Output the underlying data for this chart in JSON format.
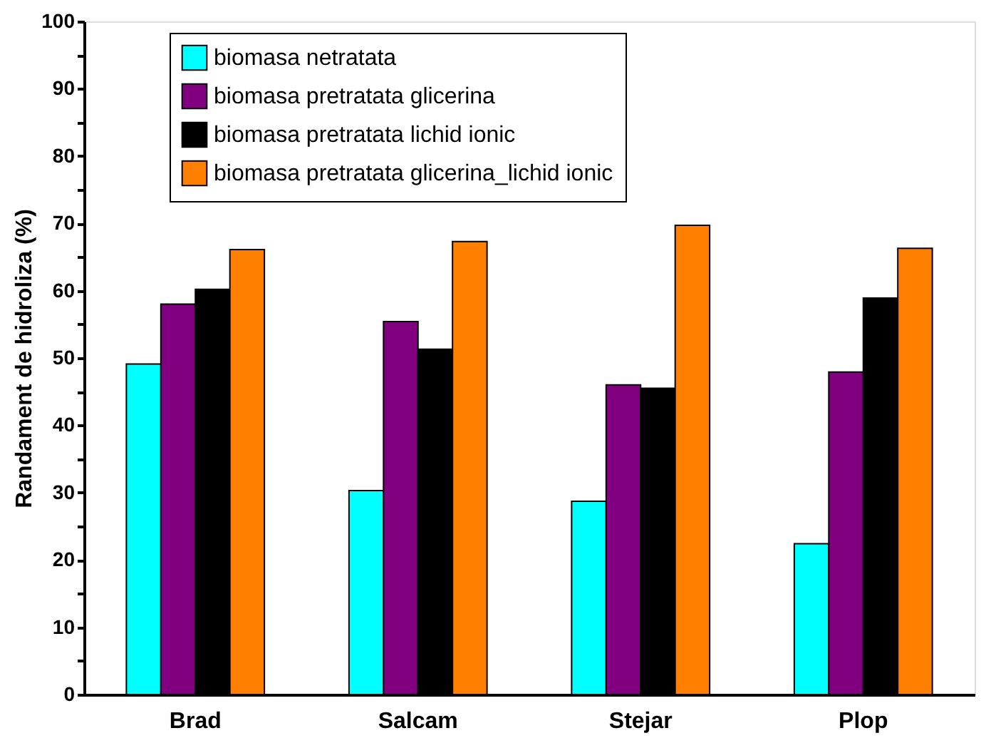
{
  "chart_data": {
    "type": "bar",
    "categories": [
      "Brad",
      "Salcam",
      "Stejar",
      "Plop"
    ],
    "ylabel": "Randament de hidroliza (%)",
    "series": [
      {
        "name": "biomasa netratata",
        "color": "#00ffff",
        "values": [
          49.1,
          30.3,
          28.7,
          22.4
        ]
      },
      {
        "name": "biomasa pretratata glicerina",
        "color": "#800080",
        "values": [
          58.0,
          55.4,
          46.0,
          47.9
        ]
      },
      {
        "name": "biomasa pretratata lichid ionic",
        "color": "#000000",
        "values": [
          60.2,
          51.3,
          45.5,
          58.9
        ]
      },
      {
        "name": "biomasa pretratata glicerina_lichid ionic",
        "color": "#ff8000",
        "values": [
          66.1,
          67.3,
          69.7,
          66.3
        ]
      }
    ],
    "ylim": [
      0,
      100
    ],
    "yticks": [
      0,
      {
        "value": 5,
        "label": null
      },
      10,
      {
        "value": 15,
        "label": null
      },
      20,
      {
        "value": 25,
        "label": null
      },
      30,
      {
        "value": 35,
        "label": null
      },
      40,
      {
        "value": 45,
        "label": null
      },
      50,
      {
        "value": 55,
        "label": null
      },
      60,
      {
        "value": 65,
        "label": null
      },
      70,
      {
        "value": 75,
        "label": null
      },
      80,
      {
        "value": 85,
        "label": null
      },
      90,
      {
        "value": 95,
        "label": null
      },
      100
    ],
    "legend": "top",
    "grid": false
  }
}
